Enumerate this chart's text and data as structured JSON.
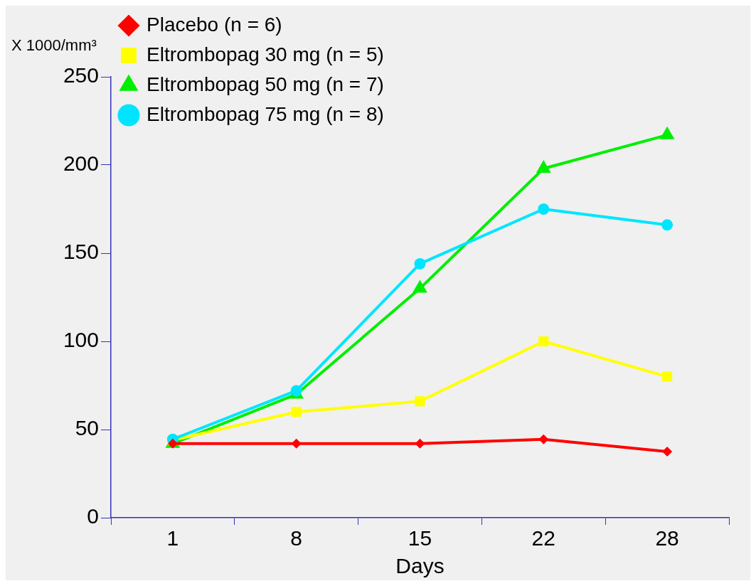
{
  "chart_data": {
    "type": "line",
    "xlabel": "Days",
    "ylabel": "X 1000/mm³",
    "categories": [
      "1",
      "8",
      "15",
      "22",
      "28"
    ],
    "ylim": [
      0,
      250
    ],
    "yticks": [
      0,
      50,
      100,
      150,
      200,
      250
    ],
    "grid": false,
    "legend": "top left",
    "line_style": "solid",
    "series": [
      {
        "name": "Placebo (n = 6)",
        "color": "#ff0000",
        "marker": "diamond",
        "values": [
          42,
          42,
          42,
          44.5,
          37.5
        ]
      },
      {
        "name": "Eltrombopag 30 mg (n = 5)",
        "color": "#ffff00",
        "marker": "square",
        "values": [
          44,
          60,
          66,
          100,
          80
        ]
      },
      {
        "name": "Eltrombopag 50 mg (n = 7)",
        "color": "#00ee00",
        "marker": "triangle",
        "values": [
          42,
          70,
          130,
          198,
          217
        ]
      },
      {
        "name": "Eltrombopag 75 mg (n = 8)",
        "color": "#00e5ff",
        "marker": "circle",
        "values": [
          44.5,
          72,
          144,
          175,
          166
        ]
      }
    ]
  }
}
